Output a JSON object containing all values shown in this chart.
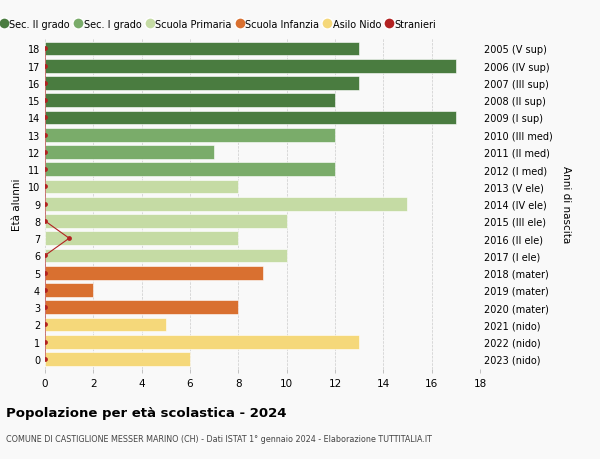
{
  "bars": [
    {
      "age": 18,
      "value": 13,
      "color": "#4a7c40",
      "label": "2005 (V sup)"
    },
    {
      "age": 17,
      "value": 17,
      "color": "#4a7c40",
      "label": "2006 (IV sup)"
    },
    {
      "age": 16,
      "value": 13,
      "color": "#4a7c40",
      "label": "2007 (III sup)"
    },
    {
      "age": 15,
      "value": 12,
      "color": "#4a7c40",
      "label": "2008 (II sup)"
    },
    {
      "age": 14,
      "value": 17,
      "color": "#4a7c40",
      "label": "2009 (I sup)"
    },
    {
      "age": 13,
      "value": 12,
      "color": "#7aac6a",
      "label": "2010 (III med)"
    },
    {
      "age": 12,
      "value": 7,
      "color": "#7aac6a",
      "label": "2011 (II med)"
    },
    {
      "age": 11,
      "value": 12,
      "color": "#7aac6a",
      "label": "2012 (I med)"
    },
    {
      "age": 10,
      "value": 8,
      "color": "#c5dba4",
      "label": "2013 (V ele)"
    },
    {
      "age": 9,
      "value": 15,
      "color": "#c5dba4",
      "label": "2014 (IV ele)"
    },
    {
      "age": 8,
      "value": 10,
      "color": "#c5dba4",
      "label": "2015 (III ele)"
    },
    {
      "age": 7,
      "value": 8,
      "color": "#c5dba4",
      "label": "2016 (II ele)"
    },
    {
      "age": 6,
      "value": 10,
      "color": "#c5dba4",
      "label": "2017 (I ele)"
    },
    {
      "age": 5,
      "value": 9,
      "color": "#d97030",
      "label": "2018 (mater)"
    },
    {
      "age": 4,
      "value": 2,
      "color": "#d97030",
      "label": "2019 (mater)"
    },
    {
      "age": 3,
      "value": 8,
      "color": "#d97030",
      "label": "2020 (mater)"
    },
    {
      "age": 2,
      "value": 5,
      "color": "#f5d87a",
      "label": "2021 (nido)"
    },
    {
      "age": 1,
      "value": 13,
      "color": "#f5d87a",
      "label": "2022 (nido)"
    },
    {
      "age": 0,
      "value": 6,
      "color": "#f5d87a",
      "label": "2023 (nido)"
    }
  ],
  "stranieri": [
    {
      "age": 18,
      "value": 0
    },
    {
      "age": 17,
      "value": 0
    },
    {
      "age": 16,
      "value": 0
    },
    {
      "age": 15,
      "value": 0
    },
    {
      "age": 14,
      "value": 0
    },
    {
      "age": 13,
      "value": 0
    },
    {
      "age": 12,
      "value": 0
    },
    {
      "age": 11,
      "value": 0
    },
    {
      "age": 10,
      "value": 0
    },
    {
      "age": 9,
      "value": 0
    },
    {
      "age": 8,
      "value": 0
    },
    {
      "age": 7,
      "value": 1
    },
    {
      "age": 6,
      "value": 0
    },
    {
      "age": 5,
      "value": 0
    },
    {
      "age": 4,
      "value": 0
    },
    {
      "age": 3,
      "value": 0
    },
    {
      "age": 2,
      "value": 0
    },
    {
      "age": 1,
      "value": 0
    },
    {
      "age": 0,
      "value": 0
    }
  ],
  "legend": [
    {
      "label": "Sec. II grado",
      "color": "#4a7c40",
      "type": "circle"
    },
    {
      "label": "Sec. I grado",
      "color": "#7aac6a",
      "type": "circle"
    },
    {
      "label": "Scuola Primaria",
      "color": "#c5dba4",
      "type": "circle"
    },
    {
      "label": "Scuola Infanzia",
      "color": "#d97030",
      "type": "circle"
    },
    {
      "label": "Asilo Nido",
      "color": "#f5d87a",
      "type": "circle"
    },
    {
      "label": "Stranieri",
      "color": "#b22222",
      "type": "circle"
    }
  ],
  "title": "Popolazione per età scolastica - 2024",
  "subtitle": "COMUNE DI CASTIGLIONE MESSER MARINO (CH) - Dati ISTAT 1° gennaio 2024 - Elaborazione TUTTITALIA.IT",
  "ylabel_left": "Età alunni",
  "ylabel_right": "Anni di nascita",
  "xlim": [
    0,
    18
  ],
  "xticks": [
    0,
    2,
    4,
    6,
    8,
    10,
    12,
    14,
    16,
    18
  ],
  "background_color": "#f9f9f9",
  "bar_height": 0.8,
  "stranieri_color": "#b22222"
}
